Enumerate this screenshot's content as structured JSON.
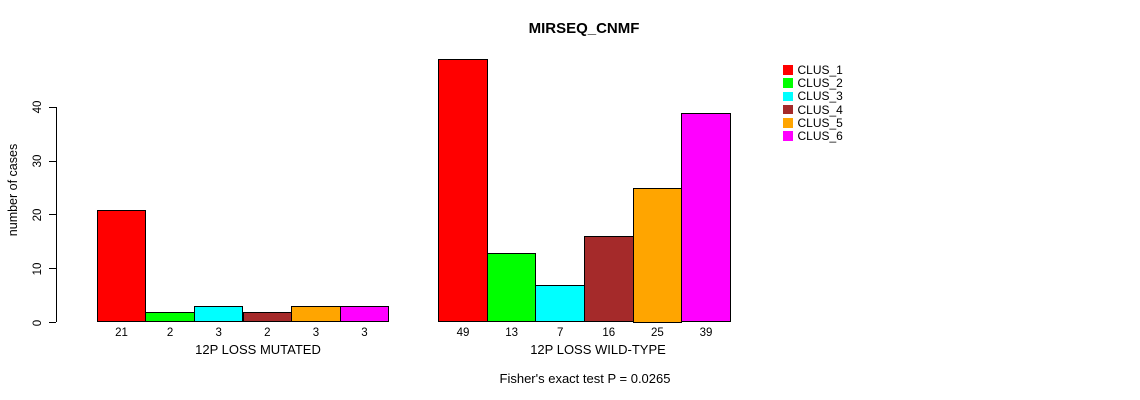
{
  "chart_data": {
    "type": "bar",
    "title": "MIRSEQ_CNMF",
    "ylabel": "number of cases",
    "yticks": [
      0,
      10,
      20,
      30,
      40
    ],
    "ylim": [
      0,
      49
    ],
    "grid": false,
    "legend_position": "right-outside",
    "subtitle": "Fisher's exact test P = 0.0265",
    "categories": [
      "12P LOSS MUTATED",
      "12P LOSS WILD-TYPE"
    ],
    "series": [
      {
        "name": "CLUS_1",
        "color": "#FF0000",
        "values": [
          21,
          49
        ]
      },
      {
        "name": "CLUS_2",
        "color": "#00FF00",
        "values": [
          2,
          13
        ]
      },
      {
        "name": "CLUS_3",
        "color": "#00FFFF",
        "values": [
          3,
          7
        ]
      },
      {
        "name": "CLUS_4",
        "color": "#A52A2A",
        "values": [
          2,
          16
        ]
      },
      {
        "name": "CLUS_5",
        "color": "#FFA500",
        "values": [
          3,
          25
        ]
      },
      {
        "name": "CLUS_6",
        "color": "#FF00FF",
        "values": [
          3,
          39
        ]
      }
    ],
    "bar_value_labels_shown": true,
    "axis_color": "#000000",
    "background_color": "#FFFFFF"
  }
}
